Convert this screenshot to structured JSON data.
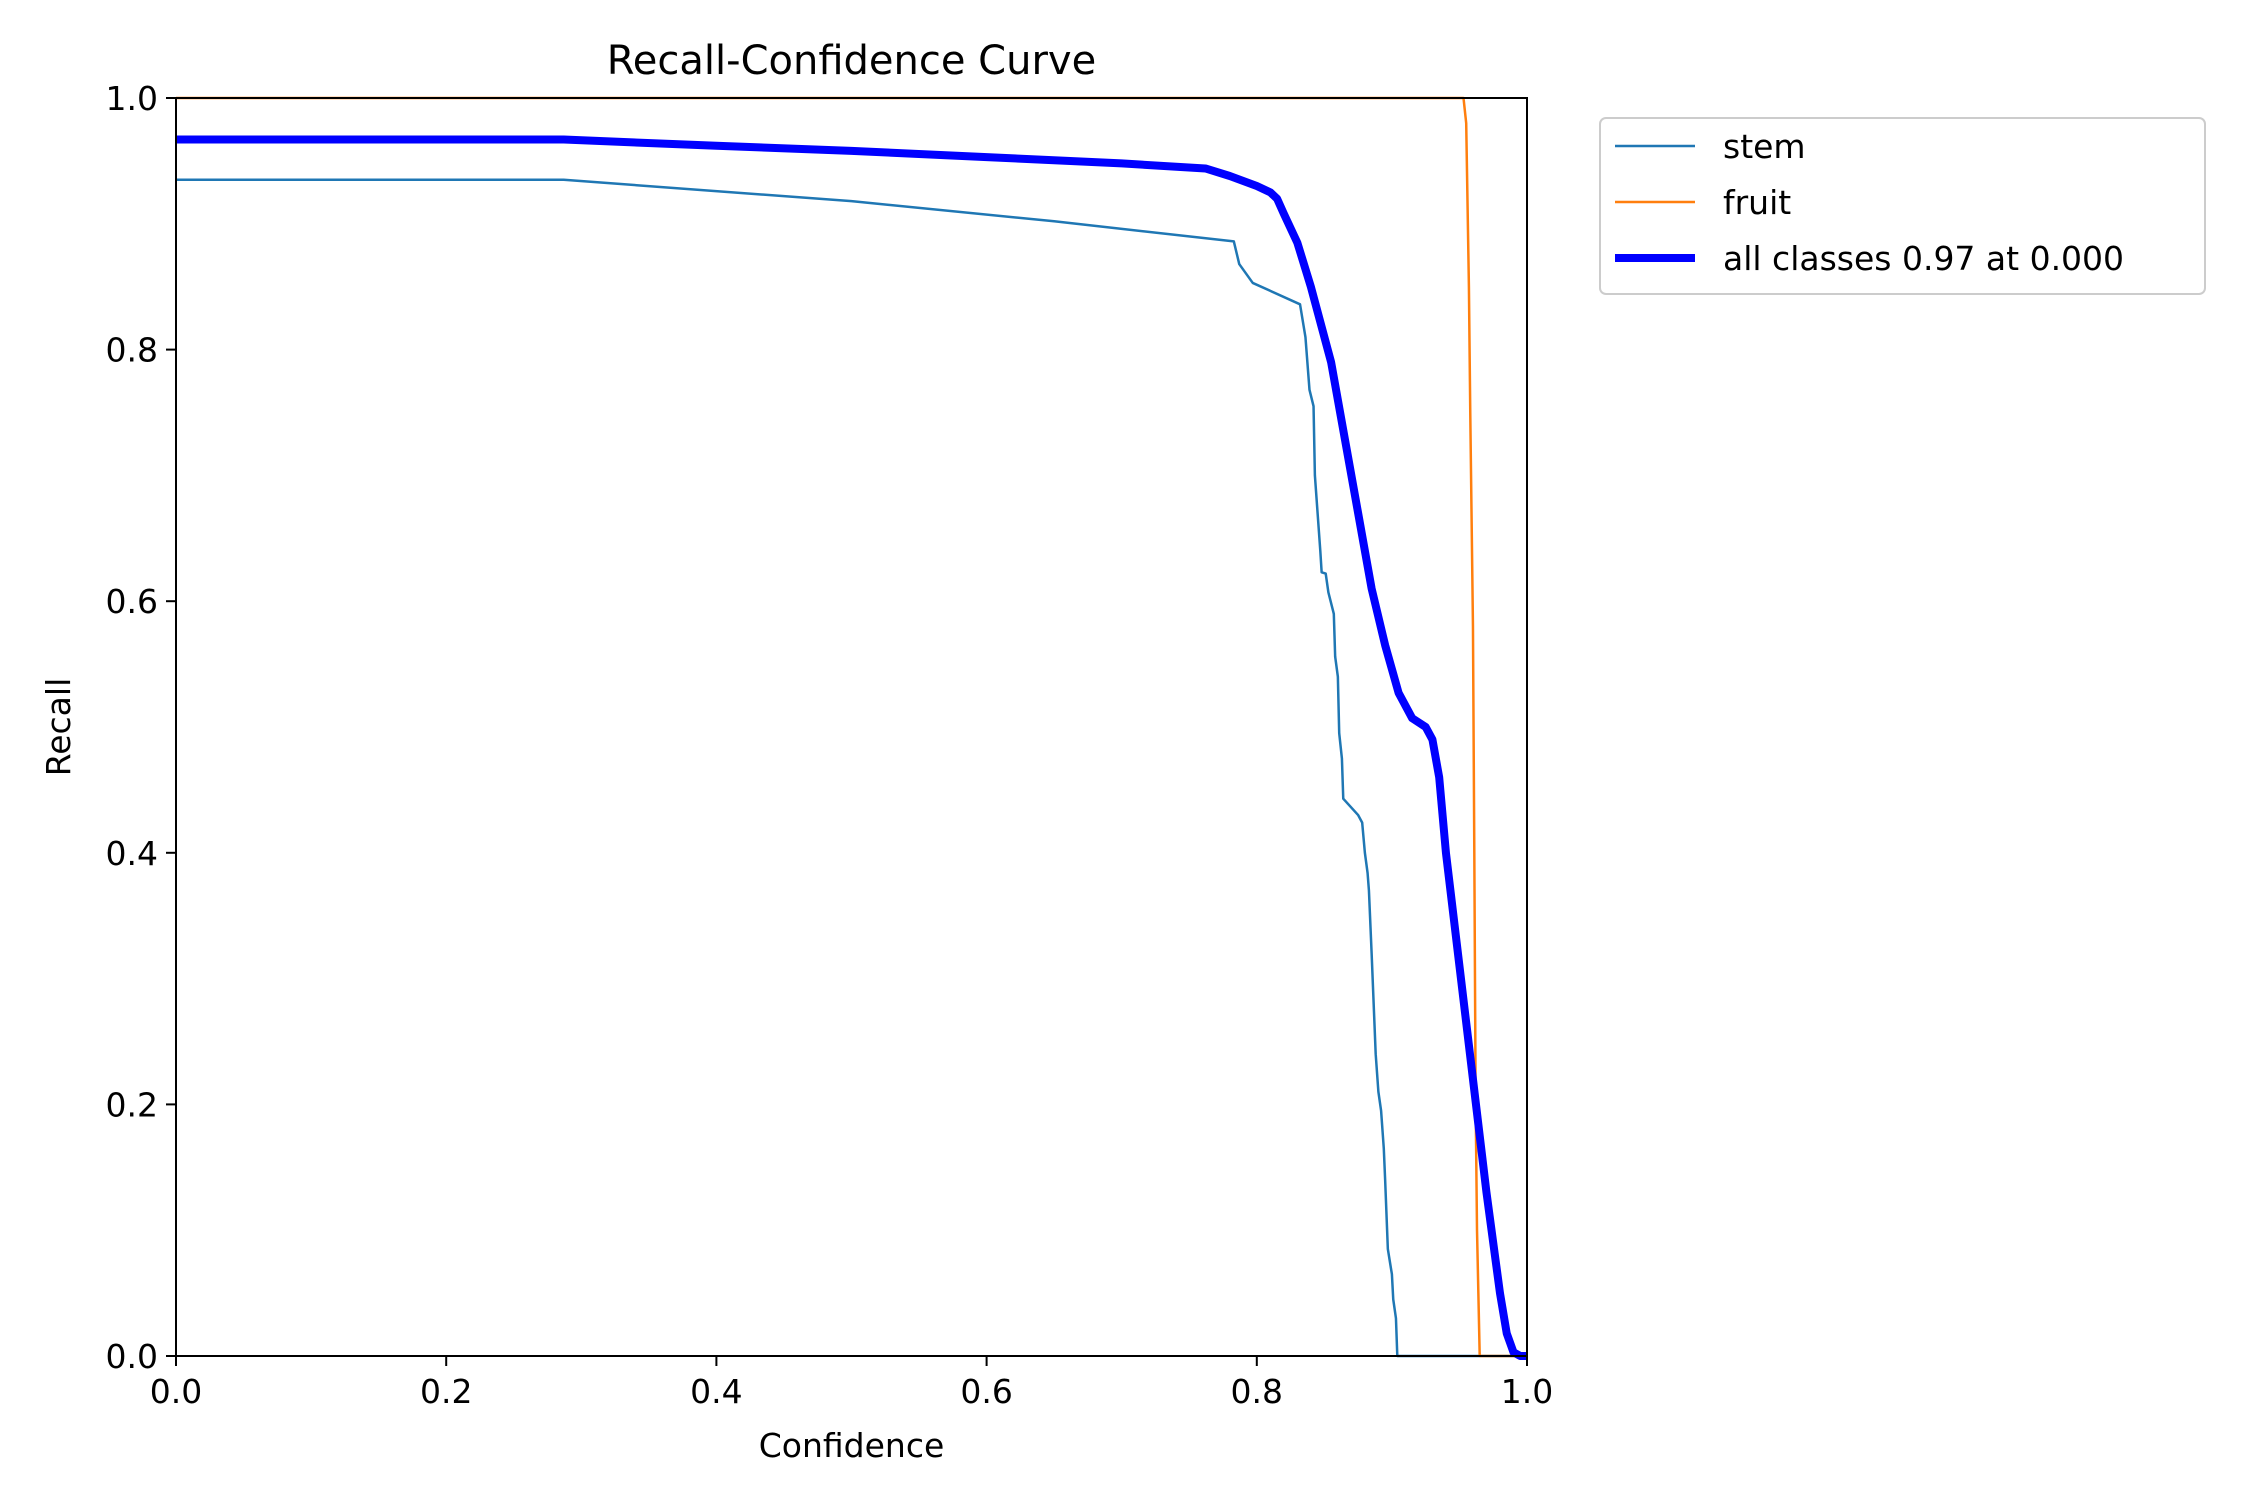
{
  "chart_data": {
    "type": "line",
    "title": "Recall-Confidence Curve",
    "xlabel": "Confidence",
    "ylabel": "Recall",
    "xlim": [
      0,
      1
    ],
    "ylim": [
      0,
      1
    ],
    "xticks": [
      "0.0",
      "0.2",
      "0.4",
      "0.6",
      "0.8",
      "1.0"
    ],
    "yticks": [
      "0.0",
      "0.2",
      "0.4",
      "0.6",
      "0.8",
      "1.0"
    ],
    "grid": false,
    "legend_position": "outside-top-right",
    "series": [
      {
        "name": "stem",
        "color": "#1f77b4",
        "points": [
          [
            0.0,
            0.935
          ],
          [
            0.287,
            0.935
          ],
          [
            0.5,
            0.918
          ],
          [
            0.65,
            0.902
          ],
          [
            0.783,
            0.886
          ],
          [
            0.787,
            0.868
          ],
          [
            0.797,
            0.853
          ],
          [
            0.832,
            0.836
          ],
          [
            0.836,
            0.81
          ],
          [
            0.839,
            0.768
          ],
          [
            0.842,
            0.755
          ],
          [
            0.843,
            0.7
          ],
          [
            0.847,
            0.64
          ],
          [
            0.848,
            0.623
          ],
          [
            0.851,
            0.622
          ],
          [
            0.853,
            0.607
          ],
          [
            0.857,
            0.59
          ],
          [
            0.858,
            0.556
          ],
          [
            0.86,
            0.54
          ],
          [
            0.861,
            0.495
          ],
          [
            0.863,
            0.475
          ],
          [
            0.864,
            0.443
          ],
          [
            0.875,
            0.43
          ],
          [
            0.878,
            0.424
          ],
          [
            0.88,
            0.4
          ],
          [
            0.882,
            0.384
          ],
          [
            0.883,
            0.37
          ],
          [
            0.885,
            0.32
          ],
          [
            0.888,
            0.24
          ],
          [
            0.89,
            0.21
          ],
          [
            0.892,
            0.195
          ],
          [
            0.894,
            0.165
          ],
          [
            0.895,
            0.14
          ],
          [
            0.897,
            0.085
          ],
          [
            0.9,
            0.065
          ],
          [
            0.901,
            0.045
          ],
          [
            0.903,
            0.03
          ],
          [
            0.904,
            0.0
          ],
          [
            0.95,
            0.0
          ],
          [
            1.0,
            0.0
          ]
        ]
      },
      {
        "name": "fruit",
        "color": "#ff7f0e",
        "points": [
          [
            0.0,
            1.0
          ],
          [
            0.953,
            1.0
          ],
          [
            0.955,
            0.98
          ],
          [
            0.957,
            0.85
          ],
          [
            0.958,
            0.75
          ],
          [
            0.96,
            0.58
          ],
          [
            0.961,
            0.4
          ],
          [
            0.962,
            0.2
          ],
          [
            0.963,
            0.1
          ],
          [
            0.964,
            0.05
          ],
          [
            0.965,
            0.0
          ],
          [
            1.0,
            0.0
          ]
        ]
      },
      {
        "name": "all classes 0.97 at 0.000",
        "color": "#0000ff",
        "points": [
          [
            0.0,
            0.967
          ],
          [
            0.287,
            0.967
          ],
          [
            0.4,
            0.962
          ],
          [
            0.5,
            0.958
          ],
          [
            0.6,
            0.953
          ],
          [
            0.7,
            0.948
          ],
          [
            0.762,
            0.944
          ],
          [
            0.78,
            0.938
          ],
          [
            0.8,
            0.93
          ],
          [
            0.81,
            0.925
          ],
          [
            0.815,
            0.92
          ],
          [
            0.82,
            0.908
          ],
          [
            0.83,
            0.885
          ],
          [
            0.84,
            0.85
          ],
          [
            0.855,
            0.79
          ],
          [
            0.865,
            0.73
          ],
          [
            0.875,
            0.67
          ],
          [
            0.885,
            0.61
          ],
          [
            0.895,
            0.565
          ],
          [
            0.905,
            0.527
          ],
          [
            0.915,
            0.507
          ],
          [
            0.925,
            0.5
          ],
          [
            0.93,
            0.49
          ],
          [
            0.935,
            0.46
          ],
          [
            0.94,
            0.4
          ],
          [
            0.95,
            0.31
          ],
          [
            0.96,
            0.22
          ],
          [
            0.97,
            0.13
          ],
          [
            0.98,
            0.05
          ],
          [
            0.985,
            0.018
          ],
          [
            0.99,
            0.003
          ],
          [
            0.995,
            0.0
          ],
          [
            1.0,
            0.0
          ]
        ]
      }
    ]
  }
}
